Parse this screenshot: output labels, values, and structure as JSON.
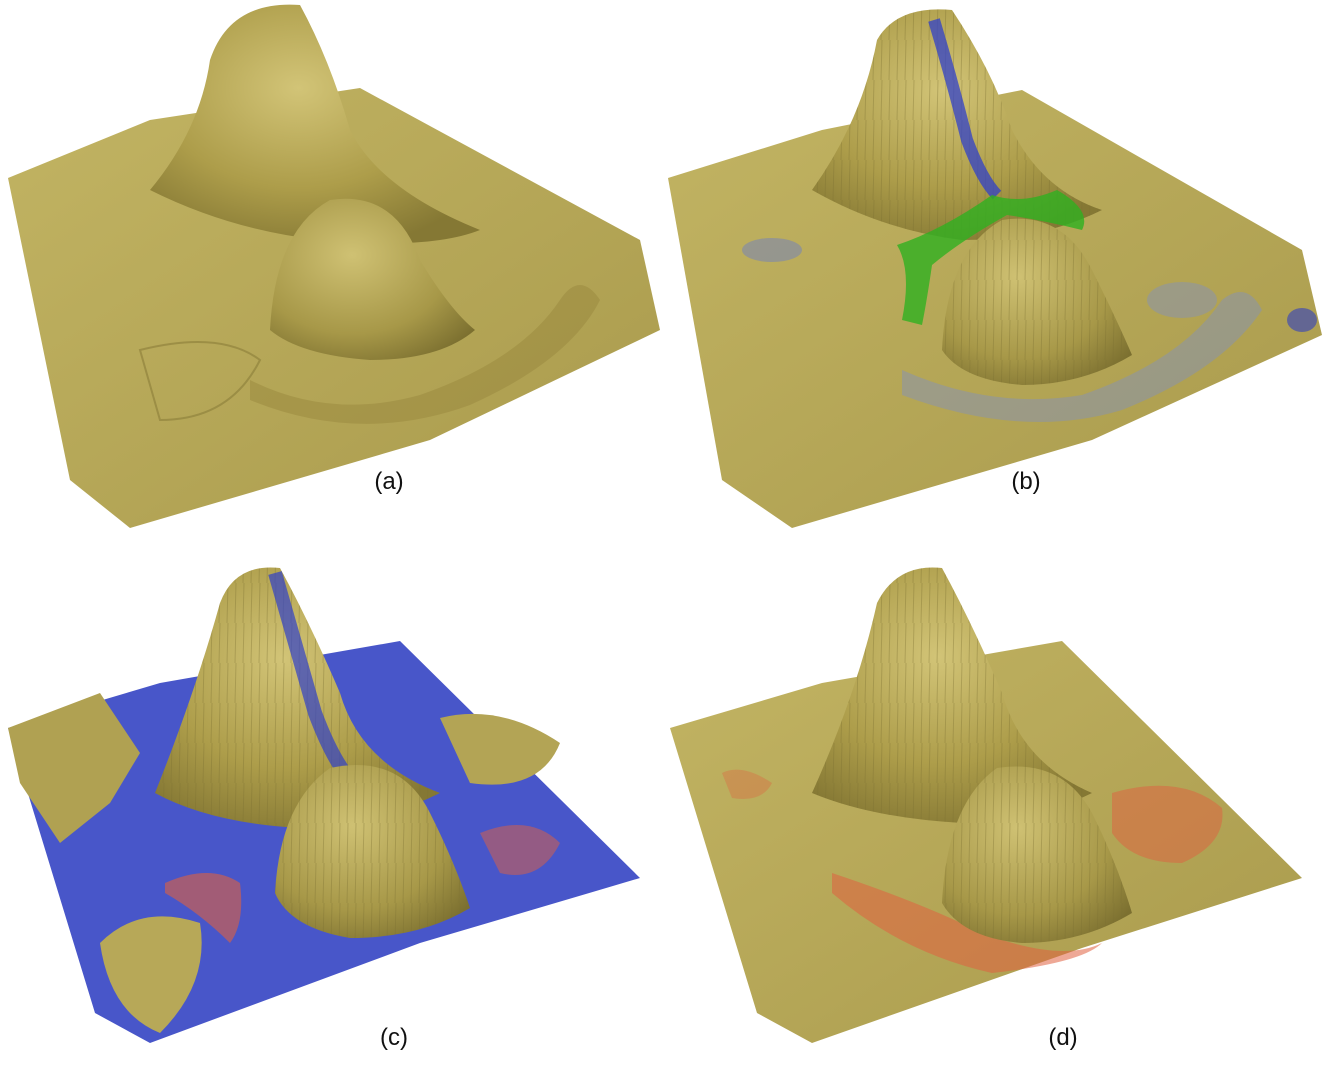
{
  "figure": {
    "panels": [
      {
        "id": "a",
        "caption": "(a)"
      },
      {
        "id": "b",
        "caption": "(b)"
      },
      {
        "id": "c",
        "caption": "(c)"
      },
      {
        "id": "d",
        "caption": "(d)"
      }
    ]
  },
  "colors": {
    "terrain": "#b5a651",
    "terrain_shadow": "#7f7334",
    "terrain_light": "#d8cc82",
    "water_blue": "#2030c0",
    "water_green": "#30b020",
    "sediment_red": "#e06040"
  }
}
